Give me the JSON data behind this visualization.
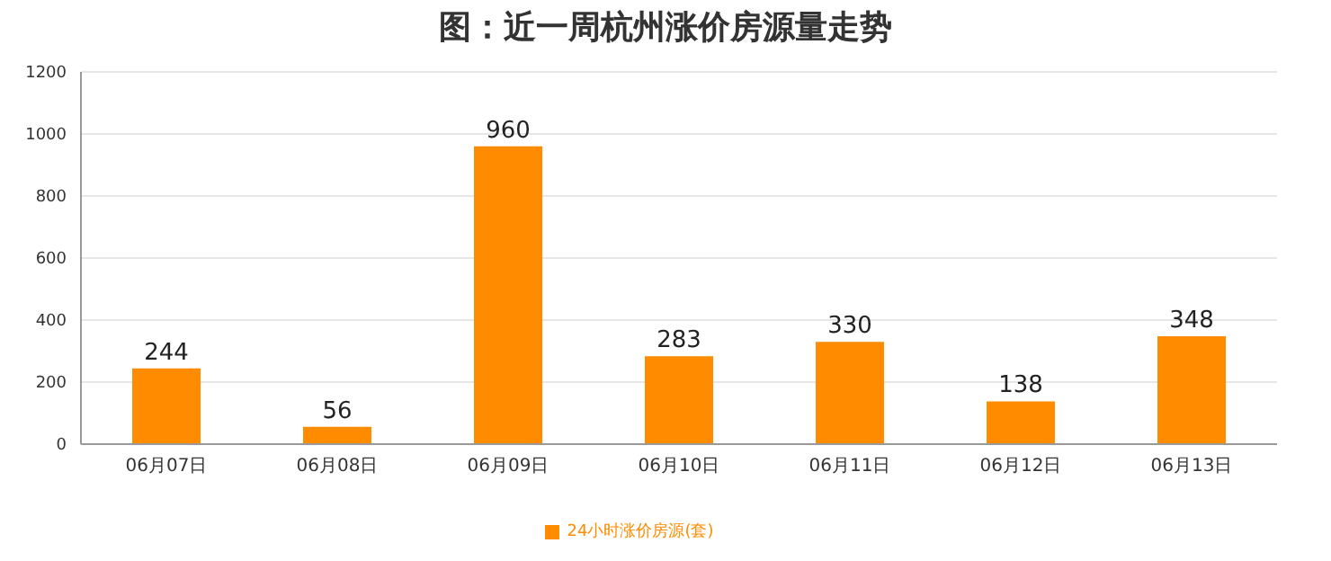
{
  "chart_data": {
    "type": "bar",
    "title": "图：近一周杭州涨价房源量走势",
    "categories": [
      "06月07日",
      "06月08日",
      "06月09日",
      "06月10日",
      "06月11日",
      "06月12日",
      "06月13日"
    ],
    "series": [
      {
        "name": "24小时涨价房源(套)",
        "color": "#ff8c00",
        "values": [
          244,
          56,
          960,
          283,
          330,
          138,
          348
        ]
      }
    ],
    "ylim": [
      0,
      1200
    ],
    "yticks": [
      0,
      200,
      400,
      600,
      800,
      1000,
      1200
    ],
    "grid": "y",
    "legend": "bottom",
    "data_labels": true
  }
}
